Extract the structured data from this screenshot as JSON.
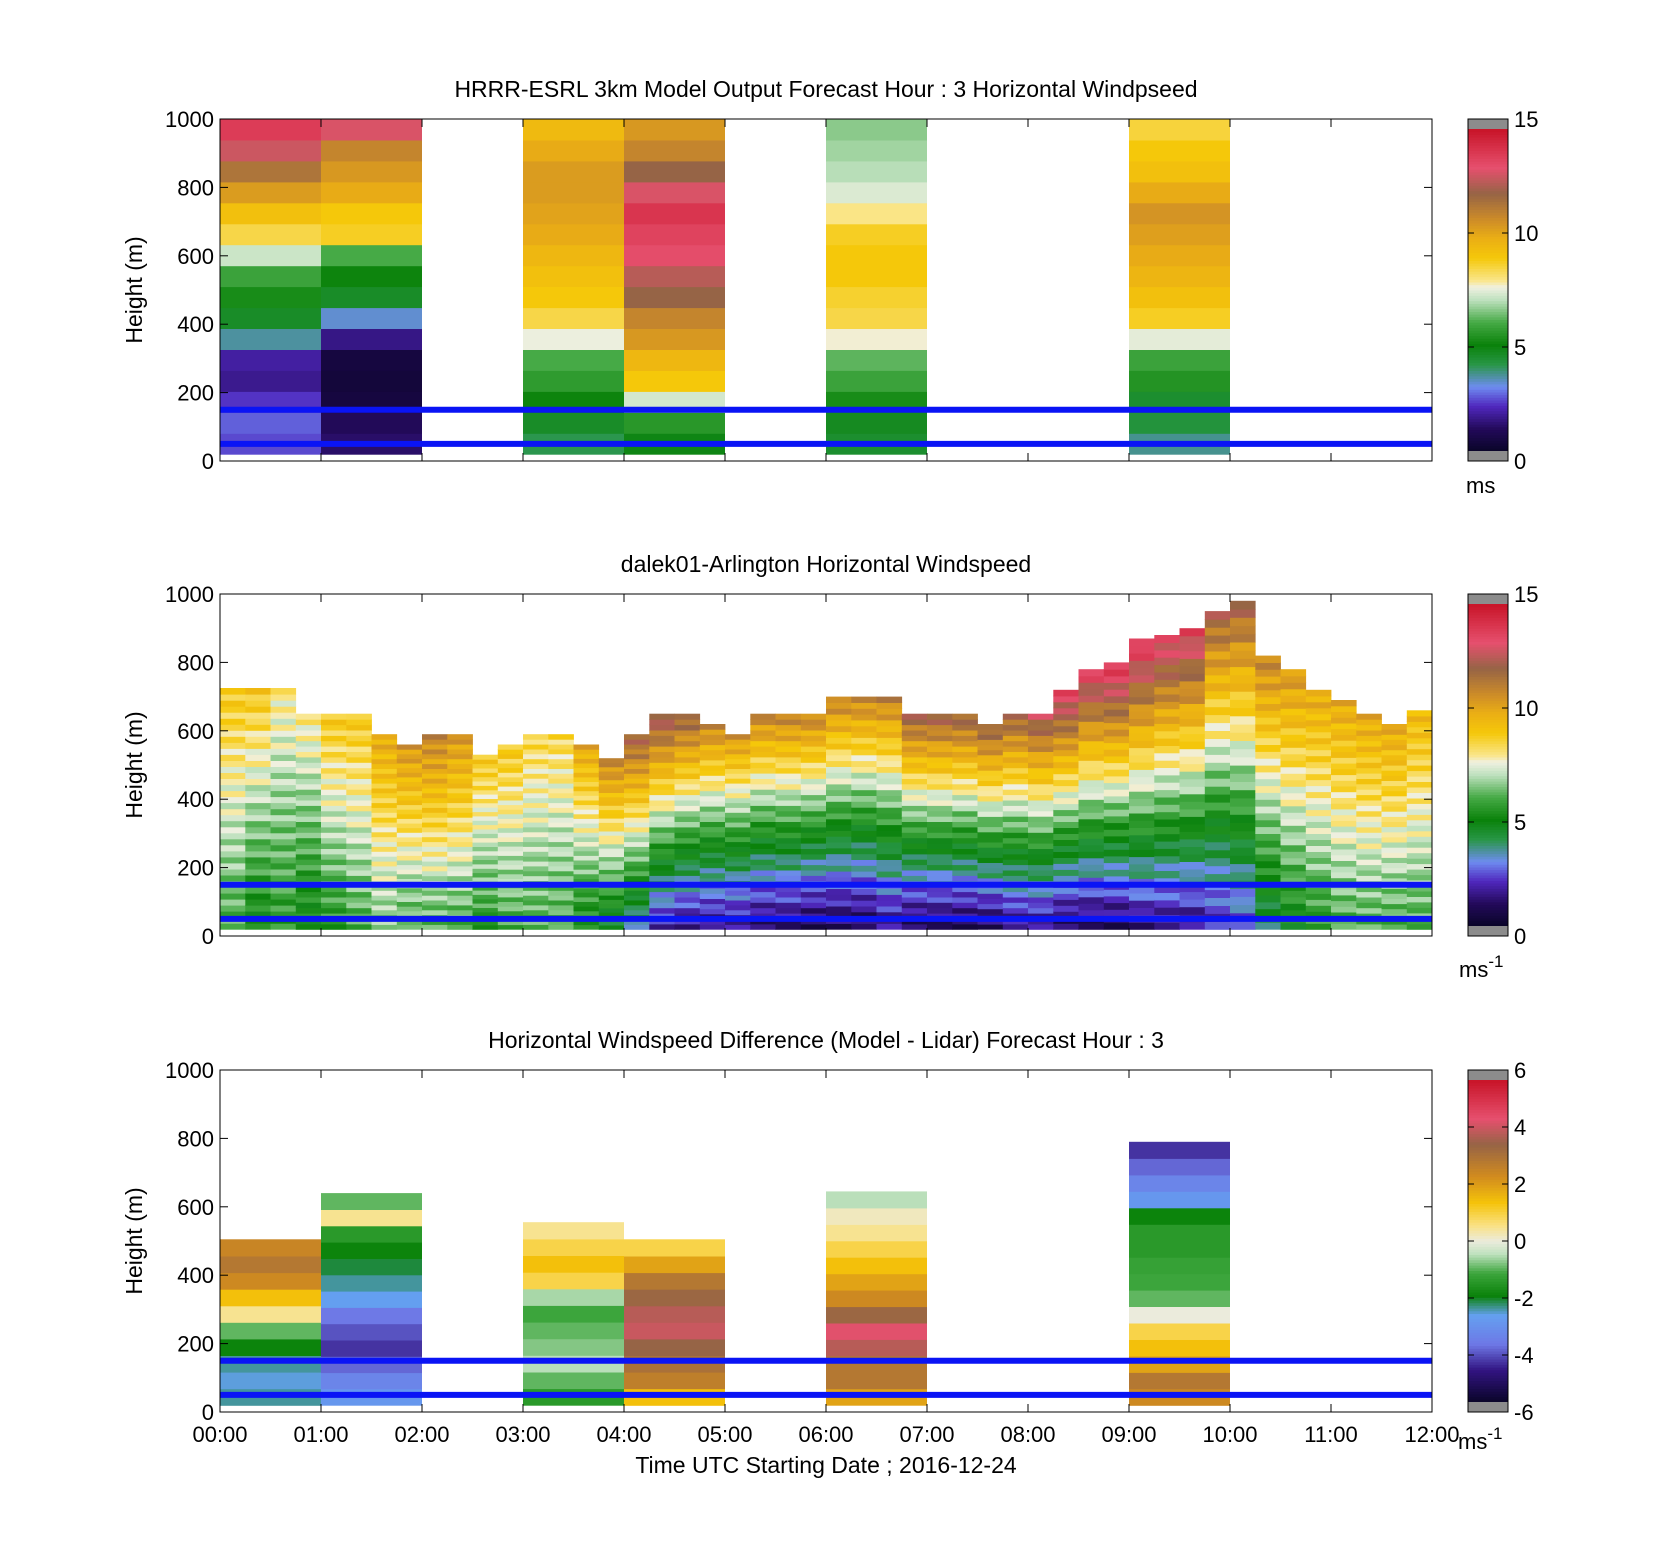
{
  "figure": {
    "xlabel": "Time UTC  Starting Date ; 2016-12-24",
    "x_tick_labels": [
      "00:00",
      "01:00",
      "02:00",
      "03:00",
      "04:00",
      "05:00",
      "06:00",
      "07:00",
      "08:00",
      "09:00",
      "10:00",
      "11:00",
      "12:00"
    ]
  },
  "colors": {
    "reference_lines": "#0a14f5",
    "axes": "#000000",
    "colorbar_endcap": "#8c8c8c"
  },
  "chart_data": [
    {
      "type": "heatmap",
      "title": "HRRR-ESRL 3km Model Output   Forecast Hour : 3 Horizontal Windpseed",
      "ylabel": "Height (m)",
      "ylim": [
        0,
        1000
      ],
      "y_ticks": [
        "0",
        "200",
        "400",
        "600",
        "800",
        "1000"
      ],
      "x_range_hours": [
        0,
        12
      ],
      "reference_lines_m": [
        150,
        50
      ],
      "colorbar": {
        "min": 0,
        "max": 15,
        "ticks": [
          "0",
          "5",
          "10",
          "15"
        ],
        "unit": "ms",
        "palette": "speed"
      },
      "columns": [
        {
          "start_hour": 0,
          "end_hour": 1,
          "bottom_m": 20,
          "top_m": 1000,
          "values": [
            2.4,
            2.6,
            2.2,
            1.6,
            1.8,
            3.5,
            4.5,
            5.2,
            5.8,
            7.2,
            8.5,
            9.3,
            10.4,
            11.5,
            12.8,
            13.8
          ]
        },
        {
          "start_hour": 1,
          "end_hour": 2,
          "bottom_m": 20,
          "top_m": 1000,
          "values": [
            1.2,
            1.0,
            0.5,
            0.4,
            0.5,
            1.5,
            3.2,
            4.5,
            5.0,
            6.0,
            8.8,
            9.0,
            10.0,
            10.5,
            11.0,
            13.0
          ]
        },
        {
          "start_hour": 3,
          "end_hour": 4,
          "bottom_m": 20,
          "top_m": 1000,
          "values": [
            4.0,
            4.5,
            5.0,
            5.6,
            6.0,
            7.6,
            8.5,
            9.0,
            9.3,
            9.6,
            10.0,
            10.2,
            10.4,
            10.4,
            10.0,
            9.5
          ]
        },
        {
          "start_hour": 4,
          "end_hour": 5,
          "bottom_m": 20,
          "top_m": 1000,
          "values": [
            4.8,
            5.5,
            7.3,
            9.0,
            9.6,
            10.5,
            11.0,
            12.0,
            12.5,
            13.3,
            13.6,
            14.0,
            13.0,
            12.0,
            11.0,
            10.5
          ]
        },
        {
          "start_hour": 6,
          "end_hour": 7,
          "bottom_m": 20,
          "top_m": 1000,
          "values": [
            4.4,
            4.6,
            5.2,
            5.8,
            6.2,
            7.7,
            8.5,
            8.7,
            9.0,
            9.0,
            8.8,
            8.0,
            7.4,
            7.0,
            6.8,
            6.6
          ]
        },
        {
          "start_hour": 9,
          "end_hour": 10,
          "bottom_m": 20,
          "top_m": 1000,
          "values": [
            3.6,
            4.2,
            4.4,
            5.4,
            5.8,
            7.5,
            8.8,
            9.3,
            9.7,
            10.0,
            10.3,
            10.6,
            10.0,
            9.3,
            9.0,
            8.6
          ]
        }
      ]
    },
    {
      "type": "heatmap",
      "title": "dalek01-Arlington  Horizontal Windspeed",
      "ylabel": "Height (m)",
      "ylim": [
        0,
        1000
      ],
      "y_ticks": [
        "0",
        "200",
        "400",
        "600",
        "800",
        "1000"
      ],
      "x_range_hours": [
        0,
        12
      ],
      "reference_lines_m": [
        150,
        50
      ],
      "colorbar": {
        "min": 0,
        "max": 15,
        "ticks": [
          "0",
          "5",
          "10",
          "15"
        ],
        "unit": "ms-1",
        "palette": "speed"
      },
      "columns_per_hour": 4,
      "profile_top_m": [
        725,
        725,
        725,
        650,
        650,
        650,
        590,
        560,
        590,
        590,
        530,
        560,
        590,
        590,
        560,
        520,
        590,
        650,
        650,
        620,
        590,
        650,
        650,
        650,
        700,
        700,
        700,
        650,
        650,
        650,
        620,
        650,
        650,
        720,
        780,
        800,
        870,
        880,
        900,
        950,
        980,
        820,
        780,
        720,
        690,
        650,
        620,
        660
      ],
      "profile_speed_bottom": [
        6,
        5,
        5.5,
        5,
        5.5,
        6,
        6.5,
        6,
        6,
        6,
        5.5,
        6,
        6,
        6,
        5,
        4.5,
        3.5,
        2,
        1.5,
        1.5,
        1.5,
        1.2,
        1.2,
        1,
        1,
        1,
        1.5,
        1,
        1,
        1,
        1,
        1.5,
        1.5,
        1,
        1,
        1,
        1.5,
        1.5,
        1.5,
        2,
        2.5,
        4,
        5,
        5.5,
        6,
        6,
        6,
        6
      ],
      "profile_speed_top": [
        9,
        9,
        8,
        8,
        9,
        9,
        10,
        10.5,
        11,
        10.5,
        9,
        9,
        8.5,
        8.5,
        10,
        11,
        12,
        12.5,
        12,
        11,
        10.5,
        11,
        11,
        11,
        11,
        11,
        11,
        12,
        12,
        12,
        12,
        12,
        12.5,
        13.5,
        13.5,
        14,
        14,
        13.5,
        13.5,
        12,
        12,
        11,
        10.5,
        10,
        10,
        10,
        10,
        9.5
      ]
    },
    {
      "type": "heatmap",
      "title": "Horizontal Windspeed Difference (Model - Lidar) Forecast Hour : 3",
      "ylabel": "Height (m)",
      "ylim": [
        0,
        1000
      ],
      "y_ticks": [
        "0",
        "200",
        "400",
        "600",
        "800",
        "1000"
      ],
      "x_range_hours": [
        0,
        12
      ],
      "reference_lines_m": [
        150,
        50
      ],
      "colorbar": {
        "min": -6,
        "max": 6,
        "ticks": [
          "-6",
          "-4",
          "-2",
          "0",
          "2",
          "4",
          "6"
        ],
        "unit": "ms-1",
        "palette": "diff"
      },
      "columns": [
        {
          "start_hour": 0,
          "end_hour": 1,
          "bottom_m": 20,
          "top_m": 505,
          "values": [
            -2.5,
            -2.7,
            -2.5,
            -2.0,
            -1.0,
            0.5,
            1.5,
            2.5,
            3.0,
            2.6
          ]
        },
        {
          "start_hour": 1,
          "end_hour": 2,
          "bottom_m": 20,
          "top_m": 640,
          "values": [
            -3.0,
            -3.5,
            -4.0,
            -4.5,
            -4.2,
            -3.8,
            -2.8,
            -2.5,
            -2.2,
            -2.0,
            -1.5,
            0.5,
            -1.0
          ]
        },
        {
          "start_hour": 3,
          "end_hour": 4,
          "bottom_m": 20,
          "top_m": 555,
          "values": [
            -1.5,
            -1.0,
            -0.5,
            -0.8,
            -1.0,
            -1.2,
            -0.6,
            1.0,
            1.5,
            1.0,
            0.5
          ]
        },
        {
          "start_hour": 4,
          "end_hour": 5,
          "bottom_m": 20,
          "top_m": 505,
          "values": [
            1.5,
            2.8,
            3.2,
            3.6,
            4.2,
            4.0,
            3.5,
            3.0,
            2.0,
            1.0
          ]
        },
        {
          "start_hour": 6,
          "end_hour": 7,
          "bottom_m": 20,
          "top_m": 645,
          "values": [
            2.0,
            3.0,
            3.0,
            4.0,
            4.5,
            3.5,
            2.5,
            2.0,
            1.5,
            1.0,
            0.5,
            0.2,
            -0.5
          ]
        },
        {
          "start_hour": 9,
          "end_hour": 10,
          "bottom_m": 20,
          "top_m": 790,
          "values": [
            2.5,
            3.0,
            2.0,
            1.5,
            1.0,
            0.0,
            -1.0,
            -1.2,
            -1.3,
            -1.5,
            -1.5,
            -2.0,
            -3.0,
            -3.5,
            -4.0,
            -4.5
          ]
        }
      ]
    }
  ]
}
